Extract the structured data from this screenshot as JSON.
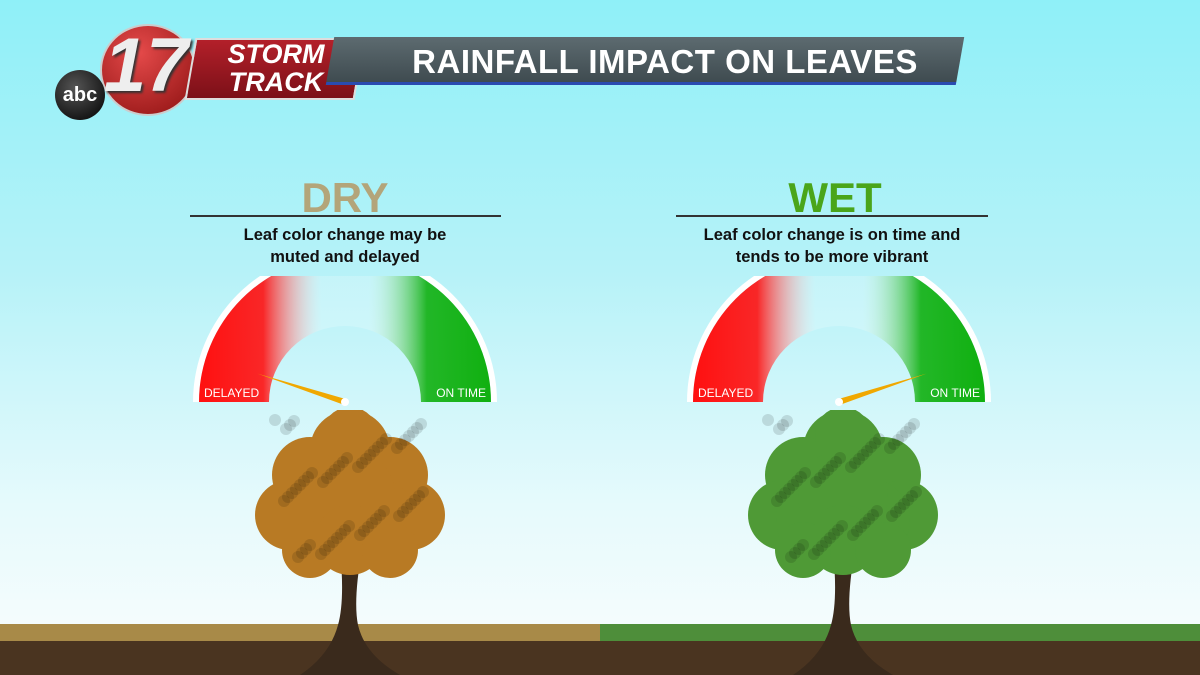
{
  "header": {
    "network": "abc",
    "channel": "17",
    "brand": "STORM TRACK",
    "title": "RAINFALL IMPACT ON LEAVES"
  },
  "panels": [
    {
      "title": "DRY",
      "title_color": "#b3a57a",
      "description": "Leaf color change may be muted and delayed",
      "gauge": {
        "left_label": "DELAYED",
        "right_label": "ON TIME",
        "value": 0.1
      },
      "foliage_color": "#b87a24",
      "grass_color": "#a88a48"
    },
    {
      "title": "WET",
      "title_color": "#4aa51a",
      "description": "Leaf color change is on time and tends to be more vibrant",
      "gauge": {
        "left_label": "DELAYED",
        "right_label": "ON TIME",
        "value": 0.9
      },
      "foliage_color": "#4f9a36",
      "grass_color": "#4e8e3a"
    }
  ],
  "colors": {
    "delayed": "#ff1010",
    "on_time": "#10b010",
    "needle": "#f0a800"
  }
}
